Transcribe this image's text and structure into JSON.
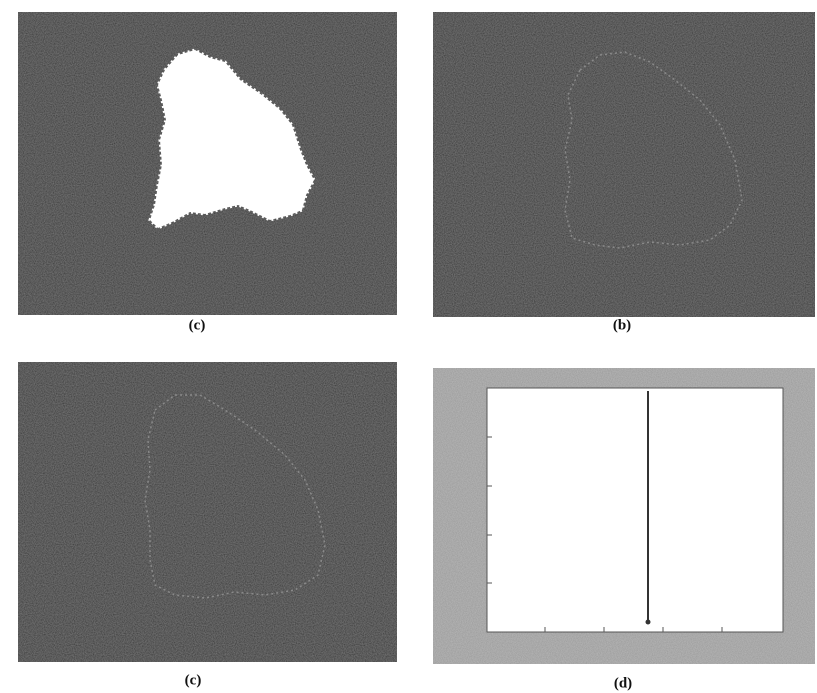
{
  "figure": {
    "captions": [
      "(c)",
      "(b)",
      "(c)",
      "(d)"
    ]
  }
}
